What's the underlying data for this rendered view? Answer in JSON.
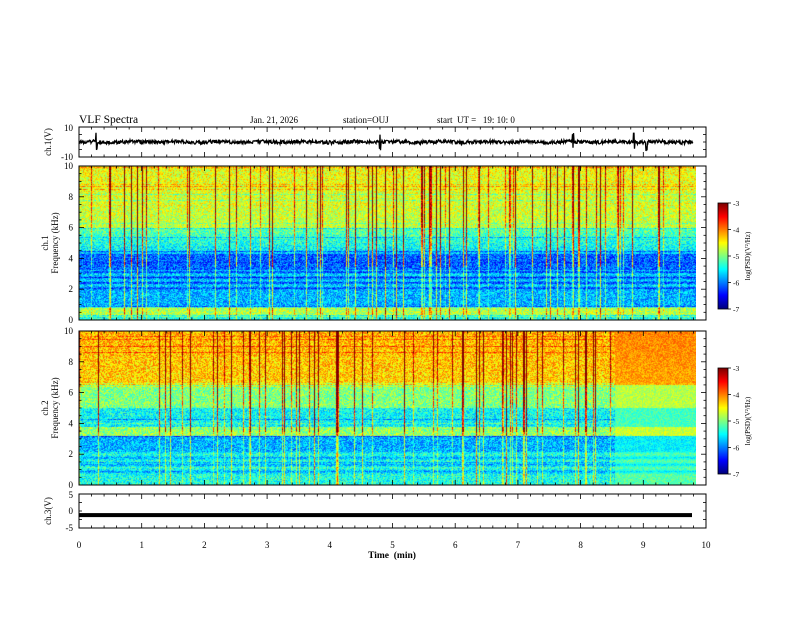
{
  "header": {
    "title": "VLF Spectra",
    "date": "Jan. 21, 2026",
    "station": "station=OUJ",
    "start": "start  UT =   19: 10: 0"
  },
  "chart_data": [
    {
      "type": "line",
      "id": "ch1-waveform",
      "ylabel": "ch.1(V)",
      "ylim": [
        -10,
        10
      ],
      "yticks": [
        "10",
        "-10"
      ],
      "xlim": [
        0,
        10
      ],
      "description_values": {
        "baseline": 0,
        "noise_amplitude": 1.2,
        "spikes_at_min": [
          0.28,
          4.8,
          7.88,
          8.85,
          9.05
        ]
      }
    },
    {
      "type": "heatmap",
      "id": "ch1-spectrogram",
      "ylabel": "ch.1",
      "ylabel2": "Frequency (kHz)",
      "ylim": [
        0,
        10
      ],
      "yticks": [
        "0",
        "2",
        "4",
        "6",
        "8",
        "10"
      ],
      "xlim": [
        0,
        9.85
      ],
      "colorbar": {
        "label": "log(PSD)(V²/Hz)",
        "range": [
          -7,
          -3
        ],
        "ticks": [
          "-3",
          "-4",
          "-5",
          "-6",
          "-7"
        ]
      }
    },
    {
      "type": "heatmap",
      "id": "ch2-spectrogram",
      "ylabel": "ch.2",
      "ylabel2": "Frequency (kHz)",
      "ylim": [
        0,
        10
      ],
      "yticks": [
        "0",
        "2",
        "4",
        "6",
        "8",
        "10"
      ],
      "xlim": [
        0,
        9.85
      ],
      "colorbar": {
        "label": "log(PSD)(V²/Hz)",
        "range": [
          -7,
          -3
        ],
        "ticks": [
          "-3",
          "-4",
          "-5",
          "-6",
          "-7"
        ]
      }
    },
    {
      "type": "line",
      "id": "ch3-waveform",
      "ylabel": "ch.3(V)",
      "ylim": [
        -5,
        5
      ],
      "yticks": [
        "5",
        "0",
        "-5"
      ],
      "xlim": [
        0,
        10
      ],
      "level": -1.2
    }
  ],
  "xaxis": {
    "label": "Time  (min)",
    "ticks": [
      "0",
      "1",
      "2",
      "3",
      "4",
      "5",
      "6",
      "7",
      "8",
      "9",
      "10"
    ]
  },
  "colors": {
    "axis": "#000000",
    "background": "#ffffff"
  }
}
